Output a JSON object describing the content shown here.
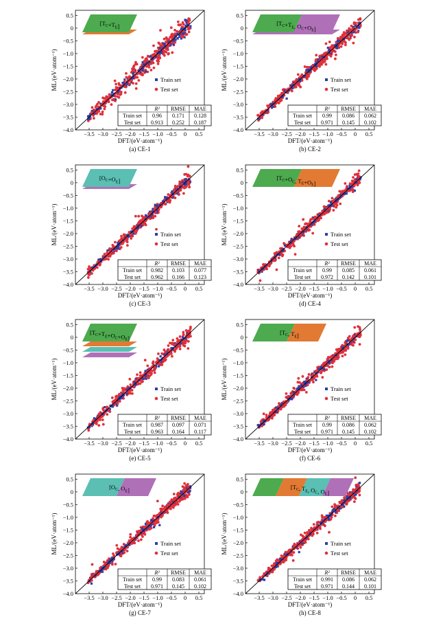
{
  "figure": {
    "legend_train": "Train set",
    "legend_test": "Test set",
    "table_headers": [
      "",
      "R²",
      "RMSE",
      "MAE"
    ],
    "xlabel": "DFT/(eV·atom⁻¹)",
    "ylabel": "ML/(eV·atom⁻¹)",
    "colors": {
      "train": "#2b3fa8",
      "test": "#e0303a",
      "green": "#4daa4f",
      "orange": "#e27a33",
      "teal": "#5bbfb3",
      "purple": "#b070b8"
    }
  },
  "chart_data": [
    {
      "type": "scatter",
      "caption": "(a) CE-1",
      "inset_label": "[T_C+T_E]",
      "inset_colors": [
        "green",
        "orange"
      ],
      "inset_layout": "stack2",
      "xlim": [
        -4.0,
        0.7
      ],
      "ylim": [
        -4.0,
        0.7
      ],
      "x_ticks": [
        "-3.5",
        "-3.0",
        "-2.5",
        "-2.0",
        "-1.5",
        "-1.0",
        "-0.5",
        "0",
        "0.5"
      ],
      "y_ticks": [
        "-4.0",
        "-3.5",
        "-3.0",
        "-2.5",
        "-2.0",
        "-1.5",
        "-1.0",
        "-0.5",
        "0",
        "0.5"
      ],
      "table": [
        [
          "Train set",
          "0.96",
          "0.171",
          "0.128"
        ],
        [
          "Test set",
          "0.913",
          "0.252",
          "0.187"
        ]
      ],
      "spread": 0.22
    },
    {
      "type": "scatter",
      "caption": "(b) CE-2",
      "inset_label": "[T_C+T_E, O_C+O_E]",
      "inset_colors": [
        "green",
        "purple"
      ],
      "inset_layout": "split2",
      "xlim": [
        -4.0,
        0.7
      ],
      "ylim": [
        -4.0,
        0.7
      ],
      "x_ticks": [
        "-3.5",
        "-3.0",
        "-2.5",
        "-2.0",
        "-1.5",
        "-1.0",
        "-0.5",
        "0",
        "0.5"
      ],
      "y_ticks": [
        "-4.0",
        "-3.5",
        "-3.0",
        "-2.5",
        "-2.0",
        "-1.5",
        "-1.0",
        "-0.5",
        "0",
        "0.5"
      ],
      "table": [
        [
          "Train set",
          "0.99",
          "0.086",
          "0.062"
        ],
        [
          "Test set",
          "0.971",
          "0.145",
          "0.102"
        ]
      ],
      "spread": 0.14
    },
    {
      "type": "scatter",
      "caption": "(c) CE-3",
      "inset_label": "[O_C+O_E]",
      "inset_colors": [
        "teal",
        "purple"
      ],
      "inset_layout": "stack2",
      "xlim": [
        -4.0,
        0.7
      ],
      "ylim": [
        -4.0,
        0.7
      ],
      "x_ticks": [
        "-3.5",
        "-3.0",
        "-2.5",
        "-2.0",
        "-1.5",
        "-1.0",
        "-0.5",
        "0",
        "0.5"
      ],
      "y_ticks": [
        "-4.0",
        "-3.5",
        "-3.0",
        "-2.5",
        "-2.0",
        "-1.5",
        "-1.0",
        "-0.5",
        "0",
        "0.5"
      ],
      "table": [
        [
          "Train set",
          "0.982",
          "0.103",
          "0.077"
        ],
        [
          "Test set",
          "0.962",
          "0.166",
          "0.123"
        ]
      ],
      "spread": 0.15
    },
    {
      "type": "scatter",
      "caption": "(d) CE-4",
      "inset_label": "[T_C+O_C, T_E+O_E]",
      "inset_colors": [
        "green",
        "orange"
      ],
      "inset_layout": "split2",
      "xlim": [
        -4.0,
        0.7
      ],
      "ylim": [
        -4.0,
        0.7
      ],
      "x_ticks": [
        "-3.5",
        "-3.0",
        "-2.5",
        "-2.0",
        "-1.5",
        "-1.0",
        "-0.5",
        "0",
        "0.5"
      ],
      "y_ticks": [
        "-4.0",
        "-3.5",
        "-3.0",
        "-2.5",
        "-2.0",
        "-1.5",
        "-1.0",
        "-0.5",
        "0",
        "0.5"
      ],
      "table": [
        [
          "Train set",
          "0.99",
          "0.085",
          "0.061"
        ],
        [
          "Test set",
          "0.972",
          "0.142",
          "0.101"
        ]
      ],
      "spread": 0.13
    },
    {
      "type": "scatter",
      "caption": "(e) CE-5",
      "inset_label": "[T_C+T_E+O_C+O_E]",
      "inset_colors": [
        "green",
        "orange",
        "teal",
        "purple"
      ],
      "inset_layout": "stack4",
      "xlim": [
        -4.0,
        0.7
      ],
      "ylim": [
        -4.0,
        0.7
      ],
      "x_ticks": [
        "-3.5",
        "-3.0",
        "-2.5",
        "-2.0",
        "-1.5",
        "-1.0",
        "-0.5",
        "0",
        "0.5"
      ],
      "y_ticks": [
        "-4.0",
        "-3.5",
        "-3.0",
        "-2.5",
        "-2.0",
        "-1.5",
        "-1.0",
        "-0.5",
        "0",
        "0.5"
      ],
      "table": [
        [
          "Train set",
          "0.987",
          "0.097",
          "0.071"
        ],
        [
          "Test set",
          "0.963",
          "0.164",
          "0.117"
        ]
      ],
      "spread": 0.15
    },
    {
      "type": "scatter",
      "caption": "(f) CE-6",
      "inset_label": "[T_C, T_E]",
      "inset_colors": [
        "green",
        "orange"
      ],
      "inset_layout": "split2",
      "xlim": [
        -4.0,
        0.7
      ],
      "ylim": [
        -4.0,
        0.7
      ],
      "x_ticks": [
        "-3.5",
        "-3.0",
        "-2.5",
        "-2.0",
        "-1.5",
        "-1.0",
        "-0.5",
        "0",
        "0.5"
      ],
      "y_ticks": [
        "-4.0",
        "-3.5",
        "-3.0",
        "-2.5",
        "-2.0",
        "-1.5",
        "-1.0",
        "-0.5",
        "0",
        "0.5"
      ],
      "table": [
        [
          "Train set",
          "0.99",
          "0.086",
          "0.062"
        ],
        [
          "Test set",
          "0.971",
          "0.145",
          "0.102"
        ]
      ],
      "spread": 0.14
    },
    {
      "type": "scatter",
      "caption": "(g) CE-7",
      "inset_label": "[O_C, O_E]",
      "inset_colors": [
        "teal",
        "purple"
      ],
      "inset_layout": "split2",
      "xlim": [
        -4.0,
        0.7
      ],
      "ylim": [
        -4.0,
        0.7
      ],
      "x_ticks": [
        "-3.5",
        "-3.0",
        "-2.5",
        "-2.0",
        "-1.5",
        "-1.0",
        "-0.5",
        "0",
        "0.5"
      ],
      "y_ticks": [
        "-4.0",
        "-3.5",
        "-3.0",
        "-2.5",
        "-2.0",
        "-1.5",
        "-1.0",
        "-0.5",
        "0",
        "0.5"
      ],
      "table": [
        [
          "Train set",
          "0.99",
          "0.083",
          "0.061"
        ],
        [
          "Test set",
          "0.971",
          "0.145",
          "0.102"
        ]
      ],
      "spread": 0.14
    },
    {
      "type": "scatter",
      "caption": "(h) CE-8",
      "inset_label": "[T_C, T_E, O_C, O_E]",
      "inset_colors": [
        "green",
        "orange",
        "teal",
        "purple"
      ],
      "inset_layout": "split4",
      "xlim": [
        -4.0,
        0.7
      ],
      "ylim": [
        -4.0,
        0.7
      ],
      "x_ticks": [
        "-3.5",
        "-3.0",
        "-2.5",
        "-2.0",
        "-1.5",
        "-1.0",
        "-0.5",
        "0",
        "0.5"
      ],
      "y_ticks": [
        "-4.0",
        "-3.5",
        "-3.0",
        "-2.5",
        "-2.0",
        "-1.5",
        "-1.0",
        "-0.5",
        "0",
        "0.5"
      ],
      "table": [
        [
          "Train set",
          "0.991",
          "0.086",
          "0.062"
        ],
        [
          "Test set",
          "0.971",
          "0.144",
          "0.101"
        ]
      ],
      "spread": 0.13
    }
  ]
}
